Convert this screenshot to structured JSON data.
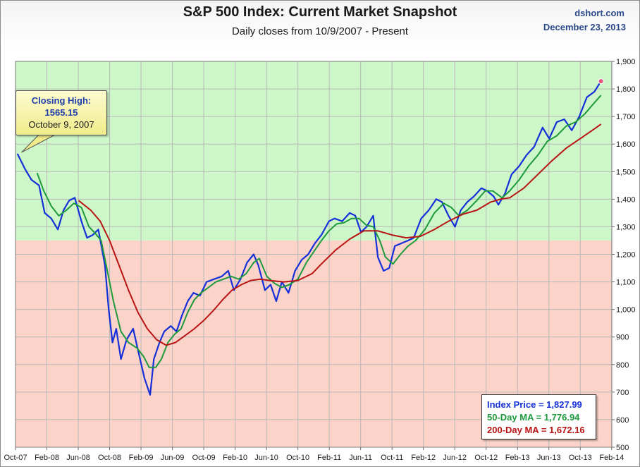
{
  "header": {
    "title": "S&P 500 Index: Current Market Snapshot",
    "subtitle": "Daily closes from 10/9/2007 - Present",
    "source": "dshort.com",
    "date": "December 23, 2013"
  },
  "callout": {
    "line1": "Closing High:",
    "line2": "1565.15",
    "line3": "October 9, 2007"
  },
  "legend": {
    "index_price": "Index Price =  1,827.99",
    "ma50": "50-Day MA =  1,776.94",
    "ma200": "200-Day MA =  1,672.16"
  },
  "colors": {
    "price": "#1530d8",
    "ma50": "#1e9a3c",
    "ma200": "#b81414",
    "above_zone": "#cdf7c8",
    "below_zone": "#fbd3c8",
    "last_marker": "#e0507a"
  },
  "chart_data": {
    "type": "line",
    "title": "S&P 500 Index: Current Market Snapshot",
    "subtitle": "Daily closes from 10/9/2007 - Present",
    "x_ticks": [
      "Oct-07",
      "Feb-08",
      "Jun-08",
      "Oct-08",
      "Feb-09",
      "Jun-09",
      "Oct-09",
      "Feb-10",
      "Jun-10",
      "Oct-10",
      "Feb-11",
      "Jun-11",
      "Oct-11",
      "Feb-12",
      "Jun-12",
      "Oct-12",
      "Feb-13",
      "Jun-13",
      "Oct-13",
      "Feb-14"
    ],
    "y_ticks": [
      "500",
      "600",
      "700",
      "800",
      "900",
      "1,000",
      "1,100",
      "1,200",
      "1,300",
      "1,400",
      "1,500",
      "1,600",
      "1,700",
      "1,800",
      "1,900"
    ],
    "ylim": [
      500,
      1900
    ],
    "shading_threshold": 1250,
    "grid": true,
    "y_axis_side": "right",
    "series": [
      {
        "name": "Index Price",
        "values": [
          [
            2007.77,
            1565
          ],
          [
            2007.85,
            1510
          ],
          [
            2007.92,
            1470
          ],
          [
            2008.0,
            1450
          ],
          [
            2008.06,
            1350
          ],
          [
            2008.13,
            1330
          ],
          [
            2008.2,
            1290
          ],
          [
            2008.26,
            1360
          ],
          [
            2008.32,
            1395
          ],
          [
            2008.38,
            1405
          ],
          [
            2008.45,
            1320
          ],
          [
            2008.51,
            1260
          ],
          [
            2008.57,
            1270
          ],
          [
            2008.63,
            1290
          ],
          [
            2008.7,
            1160
          ],
          [
            2008.74,
            1000
          ],
          [
            2008.78,
            880
          ],
          [
            2008.82,
            930
          ],
          [
            2008.87,
            820
          ],
          [
            2008.93,
            890
          ],
          [
            2009.0,
            930
          ],
          [
            2009.06,
            840
          ],
          [
            2009.12,
            750
          ],
          [
            2009.18,
            690
          ],
          [
            2009.22,
            820
          ],
          [
            2009.28,
            880
          ],
          [
            2009.33,
            920
          ],
          [
            2009.4,
            940
          ],
          [
            2009.46,
            920
          ],
          [
            2009.52,
            980
          ],
          [
            2009.58,
            1030
          ],
          [
            2009.64,
            1060
          ],
          [
            2009.71,
            1050
          ],
          [
            2009.78,
            1100
          ],
          [
            2009.86,
            1110
          ],
          [
            2009.94,
            1120
          ],
          [
            2010.01,
            1140
          ],
          [
            2010.07,
            1070
          ],
          [
            2010.14,
            1110
          ],
          [
            2010.21,
            1170
          ],
          [
            2010.28,
            1200
          ],
          [
            2010.33,
            1160
          ],
          [
            2010.4,
            1070
          ],
          [
            2010.46,
            1090
          ],
          [
            2010.52,
            1030
          ],
          [
            2010.58,
            1100
          ],
          [
            2010.65,
            1060
          ],
          [
            2010.72,
            1140
          ],
          [
            2010.79,
            1180
          ],
          [
            2010.86,
            1200
          ],
          [
            2010.93,
            1240
          ],
          [
            2011.0,
            1270
          ],
          [
            2011.08,
            1320
          ],
          [
            2011.14,
            1330
          ],
          [
            2011.22,
            1320
          ],
          [
            2011.3,
            1350
          ],
          [
            2011.36,
            1340
          ],
          [
            2011.42,
            1280
          ],
          [
            2011.48,
            1300
          ],
          [
            2011.55,
            1340
          ],
          [
            2011.6,
            1190
          ],
          [
            2011.66,
            1140
          ],
          [
            2011.72,
            1150
          ],
          [
            2011.78,
            1230
          ],
          [
            2011.85,
            1240
          ],
          [
            2011.92,
            1250
          ],
          [
            2011.98,
            1260
          ],
          [
            2012.06,
            1330
          ],
          [
            2012.14,
            1360
          ],
          [
            2012.22,
            1400
          ],
          [
            2012.28,
            1390
          ],
          [
            2012.35,
            1340
          ],
          [
            2012.42,
            1300
          ],
          [
            2012.48,
            1360
          ],
          [
            2012.55,
            1390
          ],
          [
            2012.62,
            1410
          ],
          [
            2012.7,
            1440
          ],
          [
            2012.76,
            1430
          ],
          [
            2012.83,
            1410
          ],
          [
            2012.88,
            1380
          ],
          [
            2012.95,
            1420
          ],
          [
            2013.02,
            1490
          ],
          [
            2013.1,
            1520
          ],
          [
            2013.18,
            1560
          ],
          [
            2013.26,
            1590
          ],
          [
            2013.35,
            1660
          ],
          [
            2013.42,
            1620
          ],
          [
            2013.5,
            1680
          ],
          [
            2013.58,
            1690
          ],
          [
            2013.66,
            1650
          ],
          [
            2013.74,
            1700
          ],
          [
            2013.82,
            1770
          ],
          [
            2013.9,
            1790
          ],
          [
            2013.97,
            1828
          ]
        ]
      },
      {
        "name": "50-Day MA",
        "values": [
          [
            2007.98,
            1495
          ],
          [
            2008.05,
            1430
          ],
          [
            2008.13,
            1375
          ],
          [
            2008.21,
            1340
          ],
          [
            2008.29,
            1360
          ],
          [
            2008.37,
            1385
          ],
          [
            2008.45,
            1370
          ],
          [
            2008.53,
            1300
          ],
          [
            2008.6,
            1275
          ],
          [
            2008.66,
            1250
          ],
          [
            2008.72,
            1150
          ],
          [
            2008.79,
            1030
          ],
          [
            2008.87,
            920
          ],
          [
            2008.95,
            880
          ],
          [
            2009.04,
            860
          ],
          [
            2009.11,
            830
          ],
          [
            2009.17,
            790
          ],
          [
            2009.24,
            790
          ],
          [
            2009.3,
            820
          ],
          [
            2009.37,
            880
          ],
          [
            2009.44,
            910
          ],
          [
            2009.51,
            930
          ],
          [
            2009.58,
            990
          ],
          [
            2009.65,
            1035
          ],
          [
            2009.72,
            1060
          ],
          [
            2009.8,
            1080
          ],
          [
            2009.88,
            1100
          ],
          [
            2009.96,
            1110
          ],
          [
            2010.04,
            1120
          ],
          [
            2010.12,
            1110
          ],
          [
            2010.2,
            1130
          ],
          [
            2010.28,
            1170
          ],
          [
            2010.34,
            1185
          ],
          [
            2010.42,
            1120
          ],
          [
            2010.5,
            1095
          ],
          [
            2010.58,
            1080
          ],
          [
            2010.66,
            1090
          ],
          [
            2010.75,
            1110
          ],
          [
            2010.84,
            1170
          ],
          [
            2010.92,
            1210
          ],
          [
            2011.0,
            1250
          ],
          [
            2011.08,
            1285
          ],
          [
            2011.16,
            1310
          ],
          [
            2011.24,
            1315
          ],
          [
            2011.32,
            1330
          ],
          [
            2011.4,
            1330
          ],
          [
            2011.48,
            1305
          ],
          [
            2011.55,
            1300
          ],
          [
            2011.62,
            1250
          ],
          [
            2011.68,
            1190
          ],
          [
            2011.76,
            1165
          ],
          [
            2011.84,
            1200
          ],
          [
            2011.92,
            1230
          ],
          [
            2012.0,
            1250
          ],
          [
            2012.1,
            1290
          ],
          [
            2012.2,
            1350
          ],
          [
            2012.3,
            1385
          ],
          [
            2012.38,
            1370
          ],
          [
            2012.46,
            1340
          ],
          [
            2012.55,
            1360
          ],
          [
            2012.65,
            1395
          ],
          [
            2012.74,
            1430
          ],
          [
            2012.82,
            1430
          ],
          [
            2012.92,
            1405
          ],
          [
            2013.0,
            1430
          ],
          [
            2013.1,
            1470
          ],
          [
            2013.2,
            1520
          ],
          [
            2013.3,
            1560
          ],
          [
            2013.4,
            1610
          ],
          [
            2013.5,
            1630
          ],
          [
            2013.6,
            1665
          ],
          [
            2013.7,
            1680
          ],
          [
            2013.8,
            1710
          ],
          [
            2013.9,
            1750
          ],
          [
            2013.97,
            1777
          ]
        ]
      },
      {
        "name": "200-Day MA",
        "values": [
          [
            2008.42,
            1395
          ],
          [
            2008.55,
            1360
          ],
          [
            2008.65,
            1320
          ],
          [
            2008.75,
            1250
          ],
          [
            2008.85,
            1160
          ],
          [
            2008.95,
            1070
          ],
          [
            2009.05,
            990
          ],
          [
            2009.15,
            930
          ],
          [
            2009.25,
            890
          ],
          [
            2009.35,
            870
          ],
          [
            2009.45,
            880
          ],
          [
            2009.55,
            905
          ],
          [
            2009.65,
            930
          ],
          [
            2009.75,
            960
          ],
          [
            2009.85,
            995
          ],
          [
            2009.95,
            1035
          ],
          [
            2010.05,
            1070
          ],
          [
            2010.15,
            1090
          ],
          [
            2010.25,
            1105
          ],
          [
            2010.35,
            1110
          ],
          [
            2010.45,
            1105
          ],
          [
            2010.6,
            1100
          ],
          [
            2010.75,
            1105
          ],
          [
            2010.9,
            1130
          ],
          [
            2011.0,
            1165
          ],
          [
            2011.15,
            1215
          ],
          [
            2011.3,
            1255
          ],
          [
            2011.45,
            1285
          ],
          [
            2011.6,
            1285
          ],
          [
            2011.75,
            1270
          ],
          [
            2011.9,
            1260
          ],
          [
            2012.05,
            1265
          ],
          [
            2012.2,
            1290
          ],
          [
            2012.35,
            1320
          ],
          [
            2012.5,
            1345
          ],
          [
            2012.65,
            1360
          ],
          [
            2012.8,
            1390
          ],
          [
            2012.9,
            1400
          ],
          [
            2013.0,
            1405
          ],
          [
            2013.15,
            1440
          ],
          [
            2013.3,
            1490
          ],
          [
            2013.45,
            1540
          ],
          [
            2013.6,
            1585
          ],
          [
            2013.75,
            1620
          ],
          [
            2013.9,
            1655
          ],
          [
            2013.97,
            1672
          ]
        ]
      }
    ]
  }
}
